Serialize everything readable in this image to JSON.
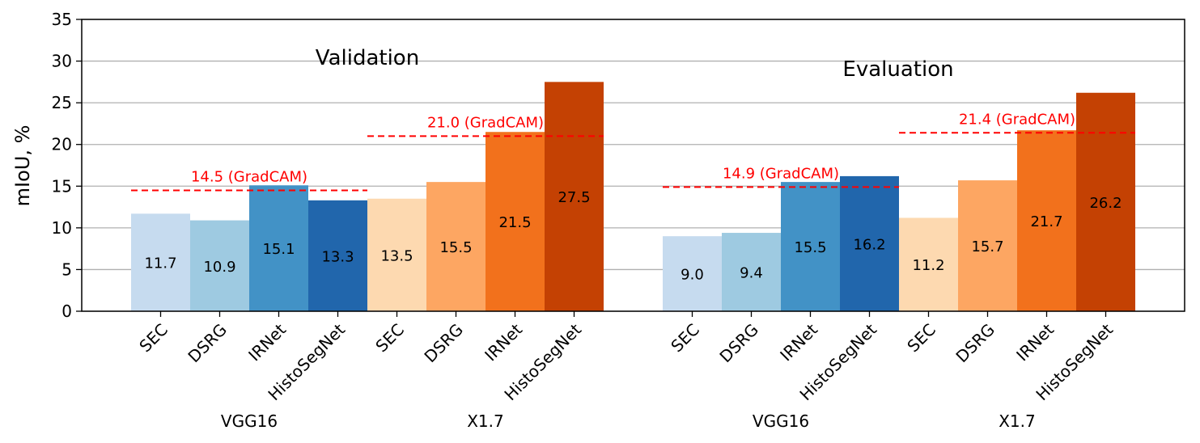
{
  "chart_data": {
    "type": "bar",
    "ylabel": "mIoU, %",
    "ylim": [
      0,
      35
    ],
    "yticks": [
      0,
      5,
      10,
      15,
      20,
      25,
      30,
      35
    ],
    "grid": "horizontal",
    "panels": [
      {
        "title": "Validation",
        "groups": [
          {
            "name": "VGG16",
            "categories": [
              "SEC",
              "DSRG",
              "IRNet",
              "HistoSegNet"
            ],
            "values": [
              11.7,
              10.9,
              15.1,
              13.3
            ],
            "labels": [
              "11.7",
              "10.9",
              "15.1",
              "13.3"
            ],
            "colors": [
              "#c6dbef",
              "#9ecae1",
              "#4292c6",
              "#2166ac"
            ],
            "gradcam": 14.5,
            "gradcam_label": "14.5 (GradCAM)"
          },
          {
            "name": "X1.7",
            "categories": [
              "SEC",
              "DSRG",
              "IRNet",
              "HistoSegNet"
            ],
            "values": [
              13.5,
              15.5,
              21.5,
              27.5
            ],
            "labels": [
              "13.5",
              "15.5",
              "21.5",
              "27.5"
            ],
            "colors": [
              "#fdd9b0",
              "#fda662",
              "#f2711c",
              "#c44103"
            ],
            "gradcam": 21.0,
            "gradcam_label": "21.0 (GradCAM)"
          }
        ]
      },
      {
        "title": "Evaluation",
        "groups": [
          {
            "name": "VGG16",
            "categories": [
              "SEC",
              "DSRG",
              "IRNet",
              "HistoSegNet"
            ],
            "values": [
              9.0,
              9.4,
              15.5,
              16.2
            ],
            "labels": [
              "9.0",
              "9.4",
              "15.5",
              "16.2"
            ],
            "colors": [
              "#c6dbef",
              "#9ecae1",
              "#4292c6",
              "#2166ac"
            ],
            "gradcam": 14.9,
            "gradcam_label": "14.9 (GradCAM)"
          },
          {
            "name": "X1.7",
            "categories": [
              "SEC",
              "DSRG",
              "IRNet",
              "HistoSegNet"
            ],
            "values": [
              11.2,
              15.7,
              21.7,
              26.2
            ],
            "labels": [
              "11.2",
              "15.7",
              "21.7",
              "26.2"
            ],
            "colors": [
              "#fdd9b0",
              "#fda662",
              "#f2711c",
              "#c44103"
            ],
            "gradcam": 21.4,
            "gradcam_label": "21.4 (GradCAM)"
          }
        ]
      }
    ]
  }
}
